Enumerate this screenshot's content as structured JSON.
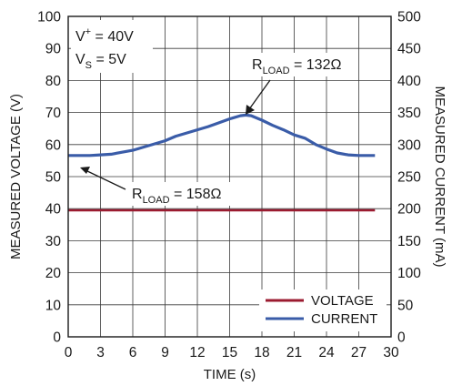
{
  "chart_data": {
    "type": "line",
    "title": "",
    "xlabel": "TIME (s)",
    "ylabel_left": "MEASURED VOLTAGE (V)",
    "ylabel_right": "MEASURED CURRENT (mA)",
    "xlim": [
      0,
      30
    ],
    "ylim_left": [
      0,
      100
    ],
    "ylim_right": [
      0,
      500
    ],
    "x_ticks": [
      0,
      3,
      6,
      9,
      12,
      15,
      18,
      21,
      24,
      27,
      30
    ],
    "y_ticks_left": [
      0,
      10,
      20,
      30,
      40,
      50,
      60,
      70,
      80,
      90,
      100
    ],
    "y_ticks_right": [
      0,
      50,
      100,
      150,
      200,
      250,
      300,
      350,
      400,
      450,
      500
    ],
    "grid": true,
    "legend_position": "bottom-right",
    "colors": {
      "voltage": "#9b1b30",
      "current": "#3a5ca8"
    },
    "series": [
      {
        "name": "VOLTAGE",
        "axis": "left",
        "x": [
          0,
          5,
          10,
          15,
          20,
          25,
          28.5
        ],
        "y": [
          39.5,
          39.5,
          39.5,
          39.5,
          39.5,
          39.5,
          39.5
        ]
      },
      {
        "name": "CURRENT",
        "axis": "right",
        "x": [
          0,
          1,
          2,
          3,
          4,
          5,
          6,
          7,
          8,
          9,
          10,
          11,
          12,
          13,
          14,
          15,
          16,
          16.5,
          17,
          18,
          19,
          20,
          21,
          22,
          23,
          24,
          25,
          26,
          27,
          28,
          28.5
        ],
        "y": [
          283,
          283,
          283,
          284,
          285,
          288,
          291,
          296,
          301,
          306,
          313,
          318,
          323,
          328,
          334,
          340,
          345,
          346,
          345,
          338,
          330,
          323,
          315,
          310,
          300,
          293,
          287,
          284,
          283,
          283,
          283
        ]
      }
    ],
    "annotations": [
      {
        "main": "R",
        "sub": "LOAD",
        "rest": " = 132Ω"
      },
      {
        "main": "R",
        "sub": "LOAD",
        "rest": " = 158Ω"
      }
    ],
    "conditions": [
      {
        "main": "V",
        "sup": "+",
        "sub": "",
        "rest": " = 40V"
      },
      {
        "main": "V",
        "sup": "",
        "sub": "S",
        "rest": " = 5V"
      }
    ]
  }
}
